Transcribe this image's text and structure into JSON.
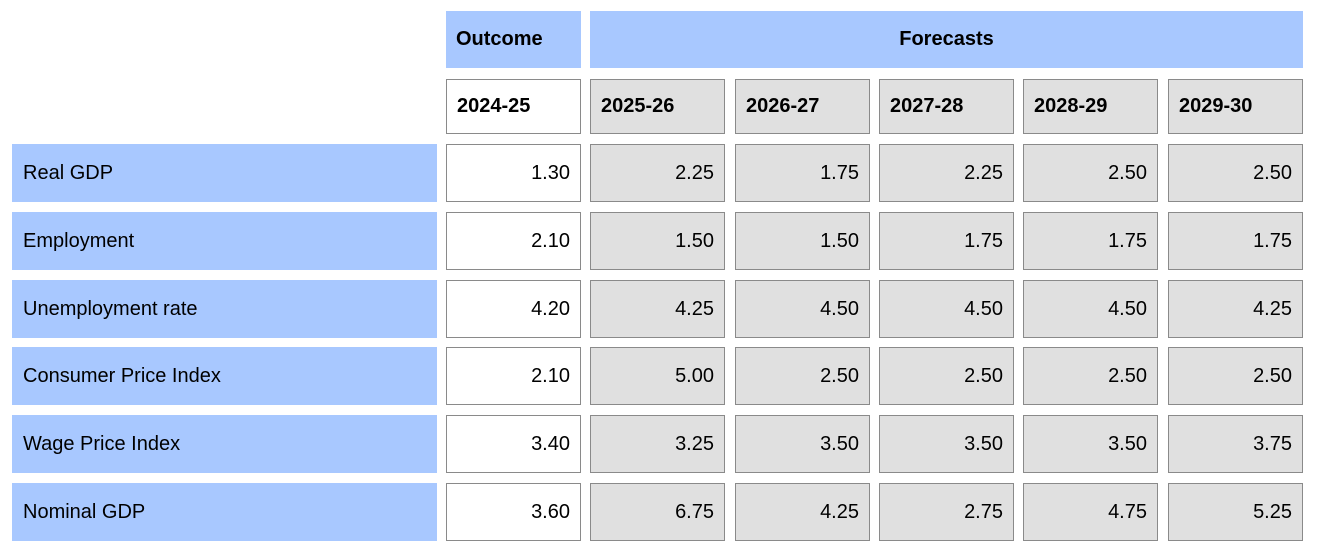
{
  "chart_data": {
    "type": "table",
    "group_headers": [
      {
        "label": "Outcome",
        "span": 1
      },
      {
        "label": "Forecasts",
        "span": 5
      }
    ],
    "columns": [
      "2024-25",
      "2025-26",
      "2026-27",
      "2027-28",
      "2028-29",
      "2029-30"
    ],
    "rows": [
      {
        "label": "Real GDP",
        "values": [
          "1.30",
          "2.25",
          "1.75",
          "2.25",
          "2.50",
          "2.50"
        ]
      },
      {
        "label": "Employment",
        "values": [
          "2.10",
          "1.50",
          "1.50",
          "1.75",
          "1.75",
          "1.75"
        ]
      },
      {
        "label": "Unemployment rate",
        "values": [
          "4.20",
          "4.25",
          "4.50",
          "4.50",
          "4.50",
          "4.25"
        ]
      },
      {
        "label": "Consumer Price Index",
        "values": [
          "2.10",
          "5.00",
          "2.50",
          "2.50",
          "2.50",
          "2.50"
        ]
      },
      {
        "label": "Wage Price Index",
        "values": [
          "3.40",
          "3.25",
          "3.50",
          "3.50",
          "3.50",
          "3.75"
        ]
      },
      {
        "label": "Nominal GDP",
        "values": [
          "3.60",
          "6.75",
          "4.25",
          "2.75",
          "4.75",
          "5.25"
        ]
      }
    ],
    "colors": {
      "header_bg": "#a8c8ff",
      "outcome_cell_bg": "#ffffff",
      "forecast_cell_bg": "#e0e0e0",
      "cell_border": "#8a8a8a"
    }
  }
}
